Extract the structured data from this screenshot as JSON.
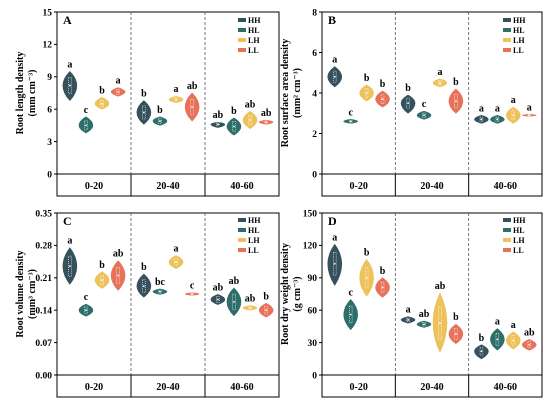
{
  "legend_labels": [
    "HH",
    "HL",
    "LH",
    "LL"
  ],
  "colors": {
    "HH": "#34515c",
    "HL": "#2d6e6a",
    "LH": "#eec25a",
    "LL": "#e8715a"
  },
  "chart_data": [
    {
      "type": "violin",
      "panel": "A",
      "ylabel": "Root length density",
      "yunit": "(mm cm⁻³)",
      "ylim": [
        0,
        15
      ],
      "yticks": [
        0,
        3,
        6,
        9,
        12,
        15
      ],
      "categories": [
        "0-20",
        "20-40",
        "40-60"
      ],
      "legend": "top-right",
      "series": [
        {
          "name": "HH",
          "values": [
            8.2,
            5.7,
            4.6
          ],
          "lo": [
            6.8,
            4.6,
            4.3
          ],
          "hi": [
            9.5,
            6.8,
            4.8
          ],
          "letters": [
            "a",
            "b",
            "ab"
          ]
        },
        {
          "name": "HL",
          "values": [
            4.5,
            4.9,
            4.4
          ],
          "lo": [
            3.8,
            4.5,
            3.6
          ],
          "hi": [
            5.3,
            5.3,
            5.2
          ],
          "letters": [
            "c",
            "b",
            "b"
          ]
        },
        {
          "name": "LH",
          "values": [
            6.5,
            6.9,
            5.0
          ],
          "lo": [
            6.0,
            6.6,
            4.2
          ],
          "hi": [
            7.1,
            7.2,
            5.8
          ],
          "letters": [
            "b",
            "a",
            "ab"
          ]
        },
        {
          "name": "LL",
          "values": [
            7.6,
            6.2,
            4.8
          ],
          "lo": [
            7.2,
            4.9,
            4.6
          ],
          "hi": [
            8.0,
            7.5,
            5.0
          ],
          "letters": [
            "a",
            "ab",
            "ab"
          ]
        }
      ]
    },
    {
      "type": "violin",
      "panel": "B",
      "ylabel": "Root surface area density",
      "yunit": "(mm² cm⁻³)",
      "ylim": [
        0,
        8
      ],
      "yticks": [
        0,
        2,
        4,
        6,
        8
      ],
      "categories": [
        "0-20",
        "20-40",
        "40-60"
      ],
      "legend": "top-right",
      "series": [
        {
          "name": "HH",
          "values": [
            4.8,
            3.5,
            2.7
          ],
          "lo": [
            4.3,
            3.0,
            2.5
          ],
          "hi": [
            5.3,
            3.9,
            2.9
          ],
          "letters": [
            "a",
            "b",
            "a"
          ]
        },
        {
          "name": "HL",
          "values": [
            2.6,
            2.9,
            2.7
          ],
          "lo": [
            2.5,
            2.7,
            2.5
          ],
          "hi": [
            2.7,
            3.1,
            2.9
          ],
          "letters": [
            "c",
            "c",
            "a"
          ]
        },
        {
          "name": "LH",
          "values": [
            4.0,
            4.5,
            2.9
          ],
          "lo": [
            3.6,
            4.3,
            2.5
          ],
          "hi": [
            4.4,
            4.7,
            3.3
          ],
          "letters": [
            "b",
            "a",
            "a"
          ]
        },
        {
          "name": "LL",
          "values": [
            3.7,
            3.6,
            2.9
          ],
          "lo": [
            3.3,
            3.0,
            2.85
          ],
          "hi": [
            4.1,
            4.2,
            2.95
          ],
          "letters": [
            "b",
            "b",
            "a"
          ]
        }
      ]
    },
    {
      "type": "violin",
      "panel": "C",
      "ylabel": "Root volume density",
      "yunit": "(mm³ cm⁻³)",
      "ylim": [
        0,
        0.35
      ],
      "yticks": [
        0.0,
        0.07,
        0.14,
        0.21,
        0.28,
        0.35
      ],
      "categories": [
        "0-20",
        "20-40",
        "40-60"
      ],
      "legend": "top-right",
      "series": [
        {
          "name": "HH",
          "values": [
            0.235,
            0.192,
            0.163
          ],
          "lo": [
            0.196,
            0.168,
            0.152
          ],
          "hi": [
            0.275,
            0.218,
            0.174
          ],
          "letters": [
            "a",
            "b",
            "ab"
          ]
        },
        {
          "name": "HL",
          "values": [
            0.14,
            0.18,
            0.158
          ],
          "lo": [
            0.127,
            0.174,
            0.128
          ],
          "hi": [
            0.153,
            0.186,
            0.188
          ],
          "letters": [
            "c",
            "bc",
            "ab"
          ]
        },
        {
          "name": "LH",
          "values": [
            0.205,
            0.244,
            0.145
          ],
          "lo": [
            0.187,
            0.23,
            0.14
          ],
          "hi": [
            0.223,
            0.258,
            0.15
          ],
          "letters": [
            "b",
            "a",
            "ab"
          ]
        },
        {
          "name": "LL",
          "values": [
            0.215,
            0.175,
            0.14
          ],
          "lo": [
            0.183,
            0.172,
            0.125
          ],
          "hi": [
            0.247,
            0.178,
            0.155
          ],
          "letters": [
            "ab",
            "c",
            "b"
          ]
        }
      ]
    },
    {
      "type": "violin",
      "panel": "D",
      "ylabel": "Root dry weight density",
      "yunit": "(g cm⁻³)",
      "ylim": [
        0,
        150
      ],
      "yticks": [
        0,
        30,
        60,
        90,
        120,
        150
      ],
      "categories": [
        "0-20",
        "20-40",
        "40-60"
      ],
      "legend": "top-right",
      "series": [
        {
          "name": "HH",
          "values": [
            103,
            51,
            22
          ],
          "lo": [
            83,
            48,
            15
          ],
          "hi": [
            121,
            54,
            28
          ],
          "letters": [
            "a",
            "a",
            "b"
          ]
        },
        {
          "name": "HL",
          "values": [
            56,
            47,
            33
          ],
          "lo": [
            42,
            44,
            23
          ],
          "hi": [
            70,
            50,
            43
          ],
          "letters": [
            "c",
            "ab",
            "a"
          ]
        },
        {
          "name": "LH",
          "values": [
            90,
            48,
            32
          ],
          "lo": [
            73,
            21,
            24
          ],
          "hi": [
            107,
            76,
            40
          ],
          "letters": [
            "b",
            "ab",
            "a"
          ]
        },
        {
          "name": "LL",
          "values": [
            81,
            38,
            28
          ],
          "lo": [
            72,
            29,
            23
          ],
          "hi": [
            90,
            47,
            33
          ],
          "letters": [
            "b",
            "b",
            "ab"
          ]
        }
      ]
    }
  ]
}
